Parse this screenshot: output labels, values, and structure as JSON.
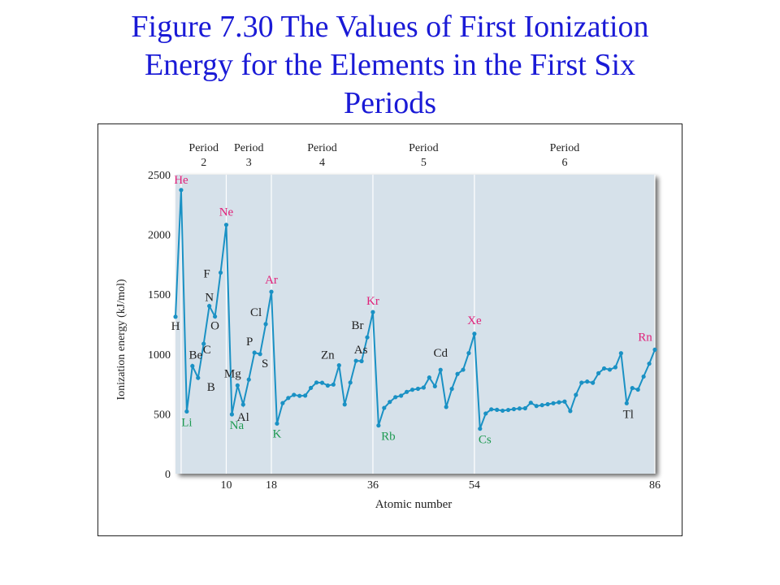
{
  "slide": {
    "title": "Figure 7.30  The Values of First Ionization\nEnergy for the Elements in the First Six\nPeriods"
  },
  "colors": {
    "title": "#1a1ad6",
    "plot_background": "#d6e1ea",
    "line": "#1a91c4",
    "noble_gas_label": "#e0227a",
    "alkali_label": "#1e9a52",
    "other_label": "#222222"
  },
  "chart_data": {
    "type": "line",
    "title": "",
    "xlabel": "Atomic number",
    "ylabel": "Ionization energy (kJ/mol)",
    "xlim": [
      1,
      86
    ],
    "ylim": [
      0,
      2500
    ],
    "yticks": [
      0,
      500,
      1000,
      1500,
      2000,
      2500
    ],
    "xticks": [
      10,
      18,
      36,
      54,
      86
    ],
    "grid": false,
    "period_markers": [
      2,
      10,
      18,
      36,
      54,
      86
    ],
    "period_labels": [
      {
        "text": "Period\n2",
        "from": 2,
        "to": 10
      },
      {
        "text": "Period\n3",
        "from": 10,
        "to": 18
      },
      {
        "text": "Period\n4",
        "from": 18,
        "to": 36
      },
      {
        "text": "Period\n5",
        "from": 36,
        "to": 54
      },
      {
        "text": "Period\n6",
        "from": 54,
        "to": 86
      }
    ],
    "series": [
      {
        "x": [
          1,
          2,
          3,
          4,
          5,
          6,
          7,
          8,
          9,
          10,
          11,
          12,
          13,
          14,
          15,
          16,
          17,
          18,
          19,
          20,
          21,
          22,
          23,
          24,
          25,
          26,
          27,
          28,
          29,
          30,
          31,
          32,
          33,
          34,
          35,
          36,
          37,
          38,
          39,
          40,
          41,
          42,
          43,
          44,
          45,
          46,
          47,
          48,
          49,
          50,
          51,
          52,
          53,
          54,
          55,
          56,
          57,
          58,
          59,
          60,
          61,
          62,
          63,
          64,
          65,
          66,
          67,
          68,
          69,
          70,
          71,
          72,
          73,
          74,
          75,
          76,
          77,
          78,
          79,
          80,
          81,
          82,
          83,
          84,
          85,
          86
        ],
        "values": [
          1312,
          2372,
          520,
          900,
          801,
          1086,
          1402,
          1314,
          1681,
          2081,
          496,
          738,
          578,
          787,
          1012,
          1000,
          1251,
          1521,
          419,
          590,
          633,
          659,
          651,
          653,
          717,
          762,
          760,
          737,
          745,
          906,
          579,
          762,
          944,
          941,
          1140,
          1351,
          403,
          550,
          600,
          640,
          652,
          684,
          702,
          710,
          720,
          804,
          731,
          868,
          558,
          709,
          834,
          869,
          1008,
          1170,
          376,
          503,
          538,
          534,
          527,
          533,
          540,
          545,
          547,
          593,
          566,
          573,
          581,
          589,
          597,
          603,
          524,
          659,
          761,
          770,
          760,
          840,
          880,
          870,
          890,
          1007,
          589,
          716,
          703,
          812,
          920,
          1037
        ]
      }
    ],
    "element_labels": [
      {
        "text": "H",
        "z": 1,
        "group": "other"
      },
      {
        "text": "He",
        "z": 2,
        "group": "noble"
      },
      {
        "text": "Li",
        "z": 3,
        "group": "alkali"
      },
      {
        "text": "Be",
        "z": 4,
        "group": "other"
      },
      {
        "text": "B",
        "z": 5,
        "group": "other"
      },
      {
        "text": "C",
        "z": 6,
        "group": "other"
      },
      {
        "text": "N",
        "z": 7,
        "group": "other"
      },
      {
        "text": "O",
        "z": 8,
        "group": "other"
      },
      {
        "text": "F",
        "z": 9,
        "group": "other"
      },
      {
        "text": "Ne",
        "z": 10,
        "group": "noble"
      },
      {
        "text": "Na",
        "z": 11,
        "group": "alkali"
      },
      {
        "text": "Mg",
        "z": 12,
        "group": "other"
      },
      {
        "text": "Al",
        "z": 13,
        "group": "other"
      },
      {
        "text": "P",
        "z": 15,
        "group": "other"
      },
      {
        "text": "S",
        "z": 16,
        "group": "other"
      },
      {
        "text": "Cl",
        "z": 17,
        "group": "other"
      },
      {
        "text": "Ar",
        "z": 18,
        "group": "noble"
      },
      {
        "text": "K",
        "z": 19,
        "group": "alkali"
      },
      {
        "text": "Zn",
        "z": 30,
        "group": "other"
      },
      {
        "text": "As",
        "z": 33,
        "group": "other"
      },
      {
        "text": "Br",
        "z": 35,
        "group": "other"
      },
      {
        "text": "Kr",
        "z": 36,
        "group": "noble"
      },
      {
        "text": "Rb",
        "z": 37,
        "group": "alkali"
      },
      {
        "text": "Cd",
        "z": 48,
        "group": "other"
      },
      {
        "text": "Xe",
        "z": 54,
        "group": "noble"
      },
      {
        "text": "Cs",
        "z": 55,
        "group": "alkali"
      },
      {
        "text": "Tl",
        "z": 81,
        "group": "other"
      },
      {
        "text": "Rn",
        "z": 86,
        "group": "noble"
      }
    ]
  }
}
